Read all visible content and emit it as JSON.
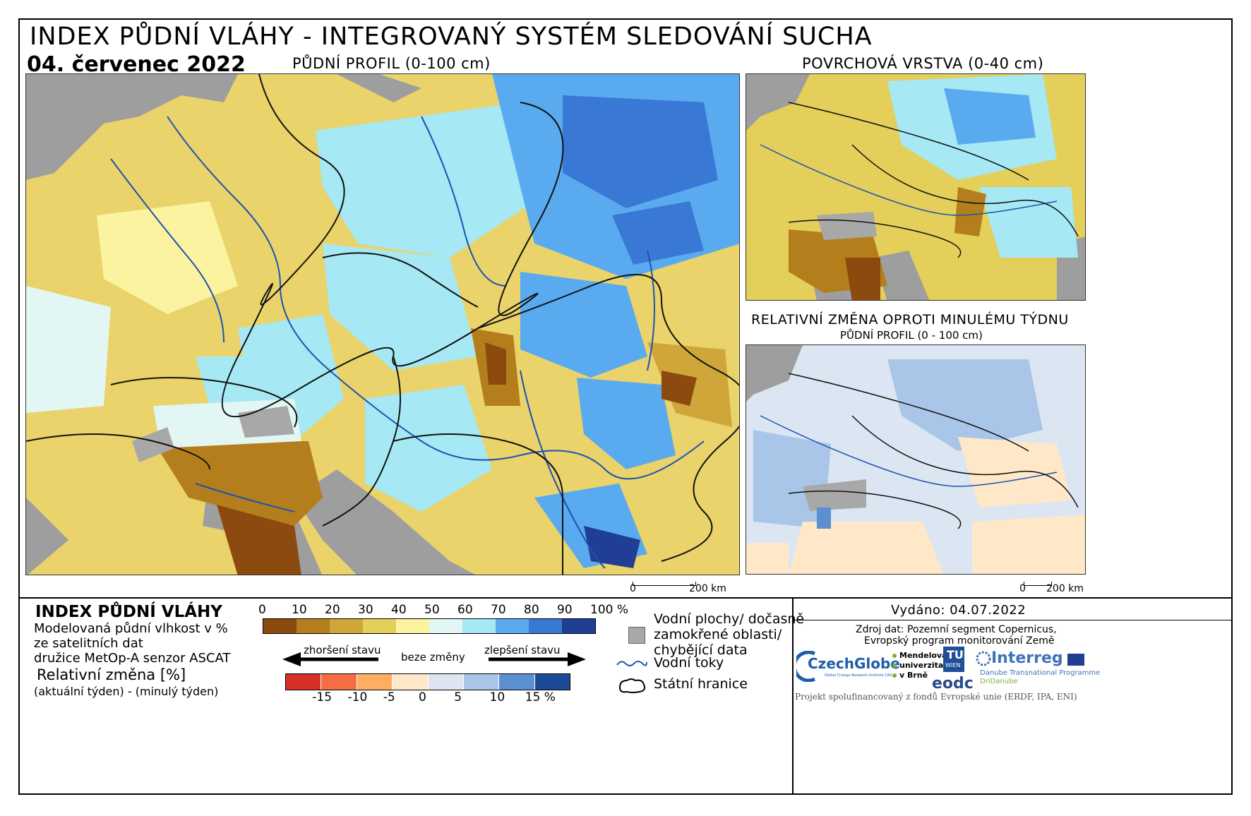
{
  "header": {
    "title": "INDEX PŮDNÍ VLÁHY - INTEGROVANÝ SYSTÉM SLEDOVÁNÍ SUCHA",
    "date": "04. červenec 2022",
    "main_map_label": "PŮDNÍ PROFIL (0-100 cm)",
    "surface_map_label": "POVRCHOVÁ VRSTVA (0-40 cm)",
    "change_map_label": "RELATIVNÍ ZMĚNA OPROTI MINULÉMU TÝDNU",
    "change_map_sublabel": "PŮDNÍ PROFIL (0 - 100 cm)"
  },
  "scalebars": {
    "main": {
      "zero": "0",
      "end": "200 km"
    },
    "small": {
      "zero": "0",
      "end": "200 km"
    }
  },
  "legend": {
    "title": "INDEX PŮDNÍ VLÁHY",
    "desc_lines": [
      "Modelovaná půdní vlhkost v %",
      "ze satelitních dat",
      "družice MetOp-A senzor ASCAT"
    ],
    "change_title": "Relativní změna [%]",
    "change_desc": "(aktuální týden) - (minulý týden)",
    "moisture_ticks": [
      "0",
      "10",
      "20",
      "30",
      "40",
      "50",
      "60",
      "70",
      "80",
      "90",
      "100 %"
    ],
    "moisture_colors": [
      "#8c4a0e",
      "#b57e1c",
      "#cfa63a",
      "#e3cf5a",
      "#fbf3a0",
      "#e2f6f3",
      "#a6e8f4",
      "#5aaaf0",
      "#3a78d6",
      "#1f3e94"
    ],
    "arrow_left": "zhoršení stavu",
    "arrow_mid": "beze změny",
    "arrow_right": "zlepšení stavu",
    "change_ticks": [
      "-15",
      "-10",
      "-5",
      "0",
      "5",
      "10",
      "15 %"
    ],
    "change_colors": [
      "#d73027",
      "#f46d43",
      "#fdae61",
      "#fee8c8",
      "#dbe6f2",
      "#a9c6e8",
      "#5b8fd1",
      "#1c4a96"
    ],
    "symbols": {
      "water_areas": "Vodní plochy/ dočasně zamokřené oblasti/ chybějící data",
      "water_areas_lines": [
        "Vodní plochy/ dočasně",
        "zamokřené oblasti/",
        "chybějící data"
      ],
      "rivers": "Vodní toky",
      "borders": "Státní hranice",
      "gray": "#a8a8a8",
      "river_color": "#1d52b3"
    }
  },
  "footer": {
    "issued": "Vydáno: 04.07.2022",
    "source_line1": "Zdroj dat: Pozemní segment Copernicus,",
    "source_line2": "Evropský program monitorování Země",
    "funding": "Projekt spolufinancovaný z fondů Evropské unie (ERDF, IPA, ENI)",
    "logos": {
      "czechglobe": "CzechGlobe",
      "czechglobe_sub": "Global Change Research Institute CAS",
      "mendelu": [
        "Mendelova",
        "univerzita",
        "v Brně"
      ],
      "tu": "TU",
      "tu_sub": "WIEN",
      "eodc": "eodc",
      "interreg": "Interreg",
      "interreg_sub1": "Danube Transnational Programme",
      "interreg_sub2": "DriDanube"
    }
  }
}
